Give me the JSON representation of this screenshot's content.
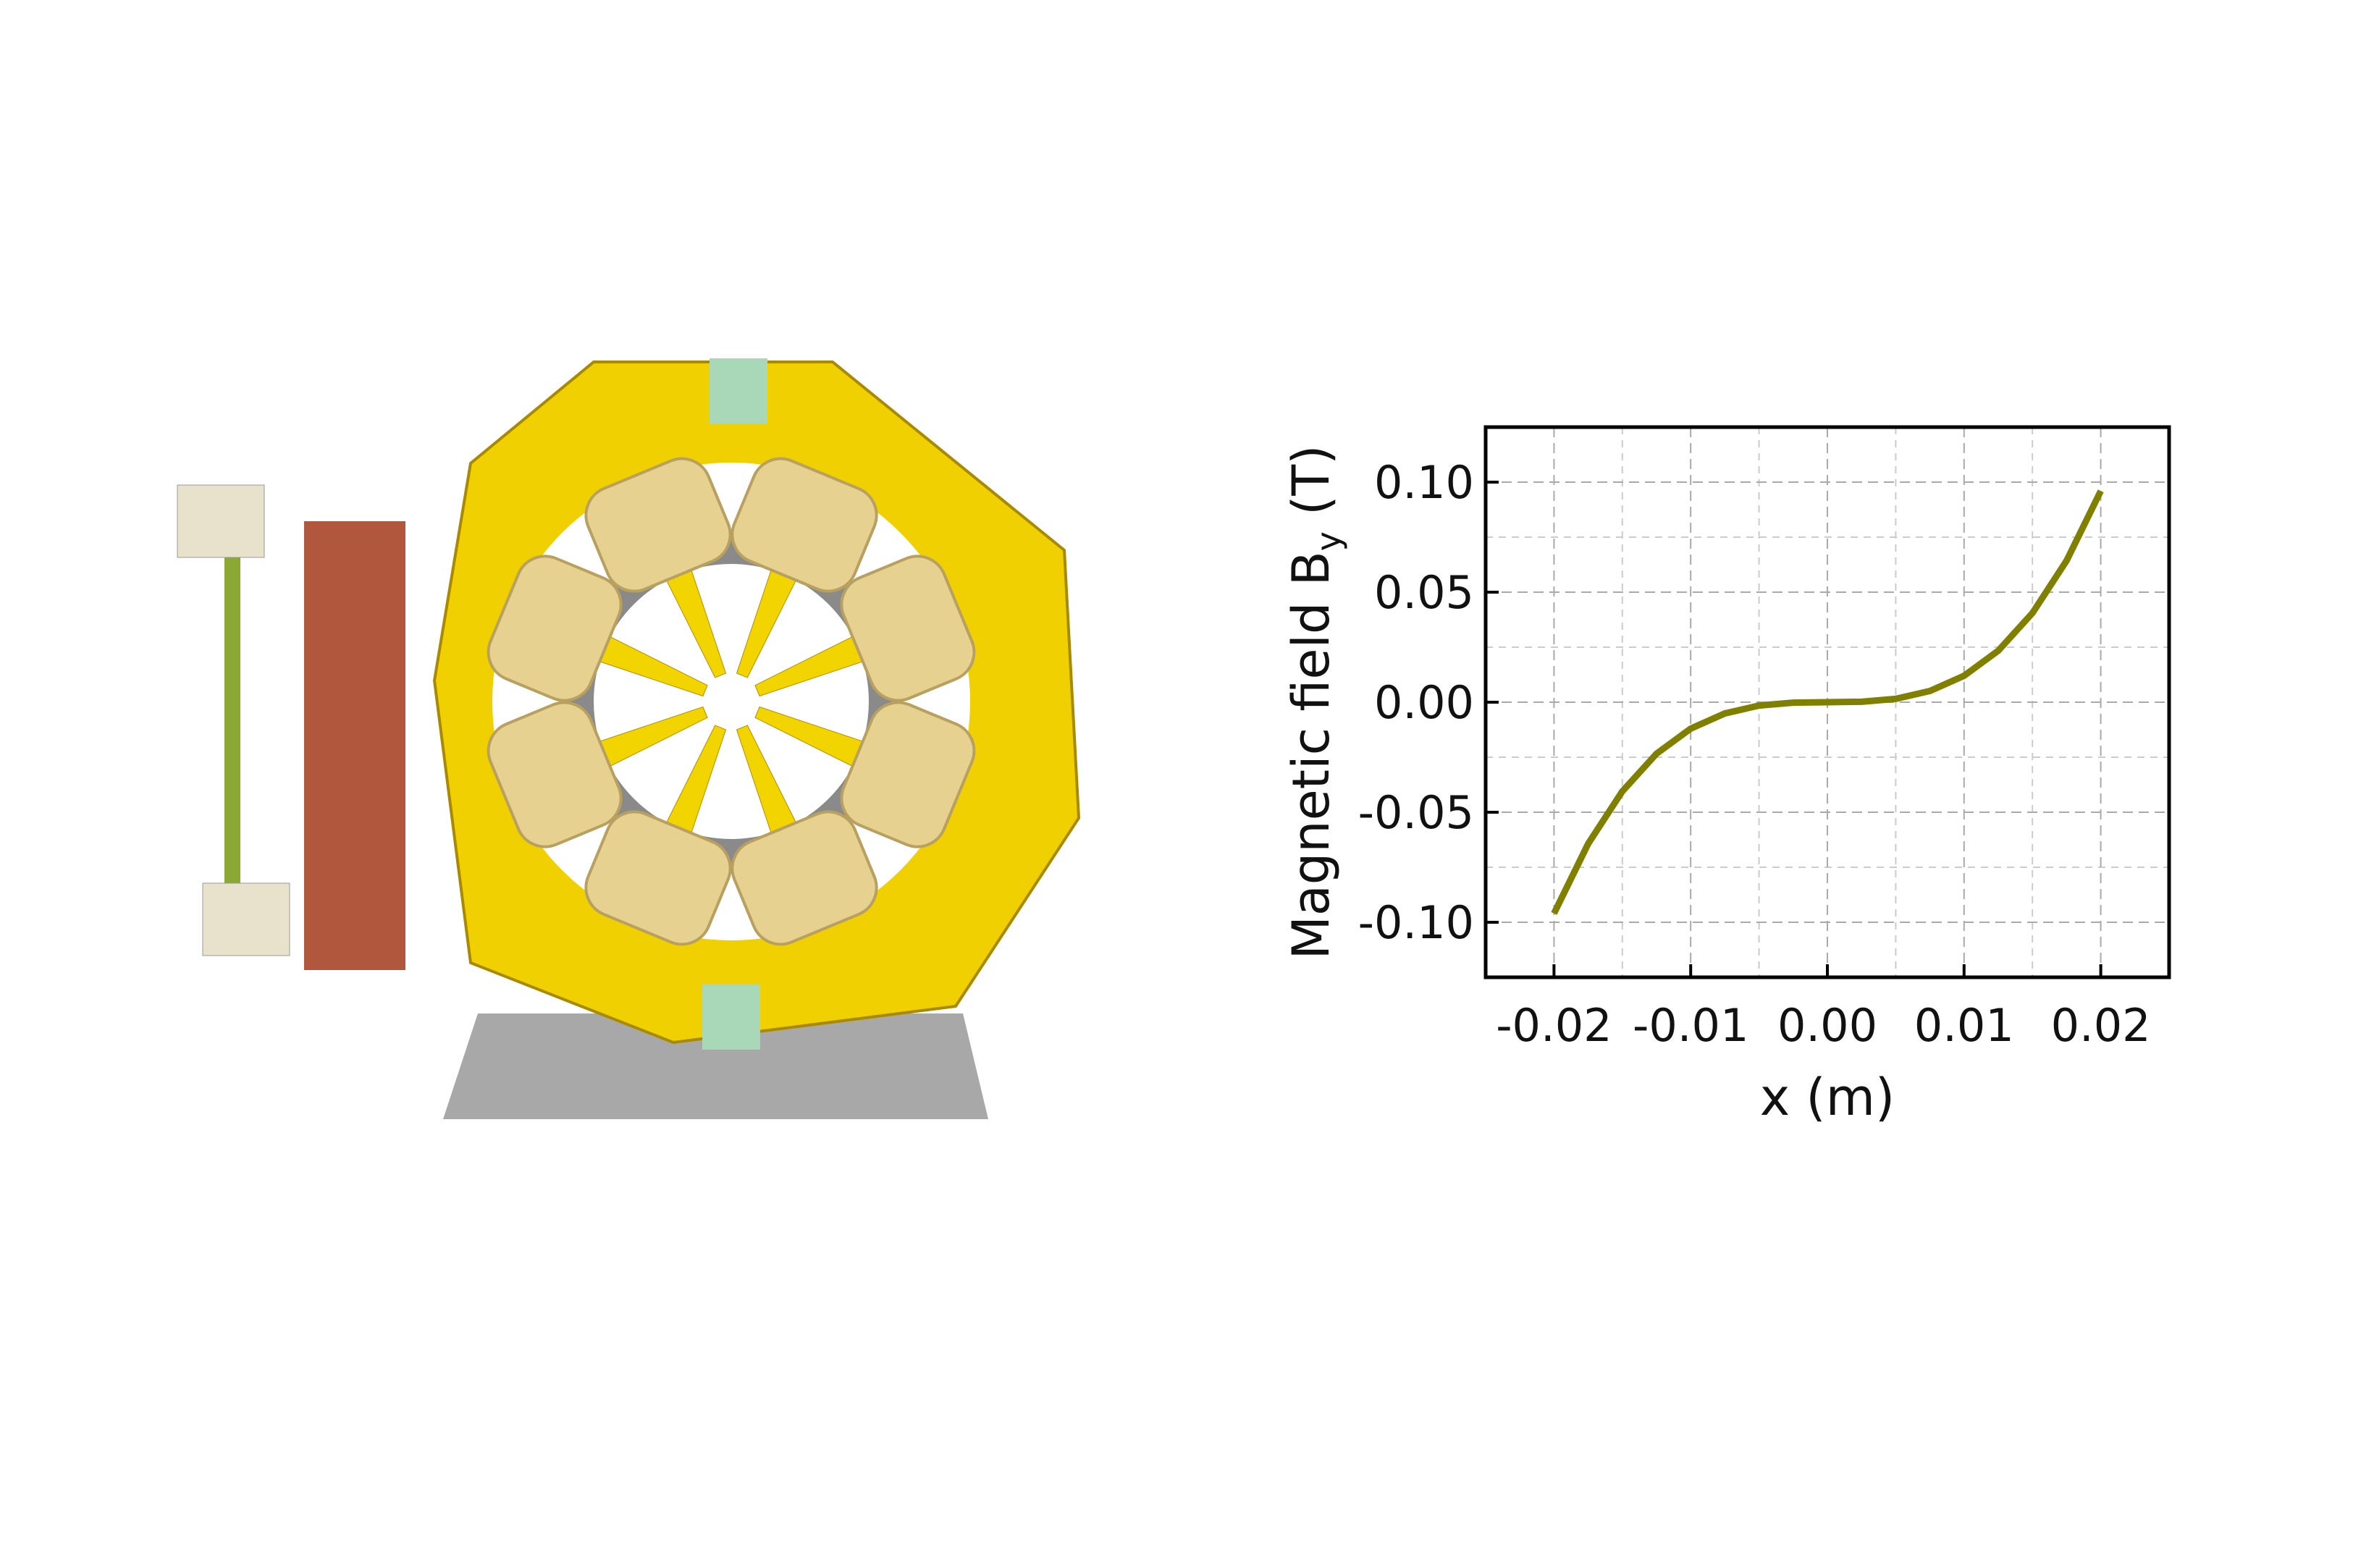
{
  "chart_data": {
    "type": "line",
    "xlabel": "x (m)",
    "ylabel": [
      "Magnetic field B",
      "y",
      " (T)"
    ],
    "x": [
      -0.02,
      -0.0175,
      -0.015,
      -0.0125,
      -0.01,
      -0.0075,
      -0.005,
      -0.0025,
      0,
      0.0025,
      0.005,
      0.0075,
      0.01,
      0.0125,
      0.015,
      0.0175,
      0.02
    ],
    "series": [
      {
        "color": "#808000",
        "values": [
          -0.096,
          -0.0643,
          -0.0405,
          -0.0234,
          -0.012,
          -0.0051,
          -0.0015,
          -0.0002,
          0,
          0.0002,
          0.0015,
          0.0051,
          0.012,
          0.0234,
          0.0405,
          0.0643,
          0.096
        ]
      }
    ],
    "xlim": [
      -0.025,
      0.025
    ],
    "ylim": [
      -0.125,
      0.125
    ],
    "xticks": [
      -0.02,
      -0.01,
      {
        "value": 0,
        "label": "0.00"
      },
      0.01,
      0.02
    ],
    "yticks": [
      {
        "value": -0.1,
        "label": "-0.10"
      },
      -0.05,
      {
        "value": 0,
        "label": "0.00"
      },
      0.05,
      {
        "value": 0.1,
        "label": "0.10"
      }
    ],
    "xminor": [
      -0.025,
      -0.015,
      -0.005,
      0.005,
      0.015,
      0.025
    ],
    "yminor": [
      -0.125,
      -0.075,
      -0.025,
      0.025,
      0.075,
      0.125
    ],
    "grid": true
  }
}
